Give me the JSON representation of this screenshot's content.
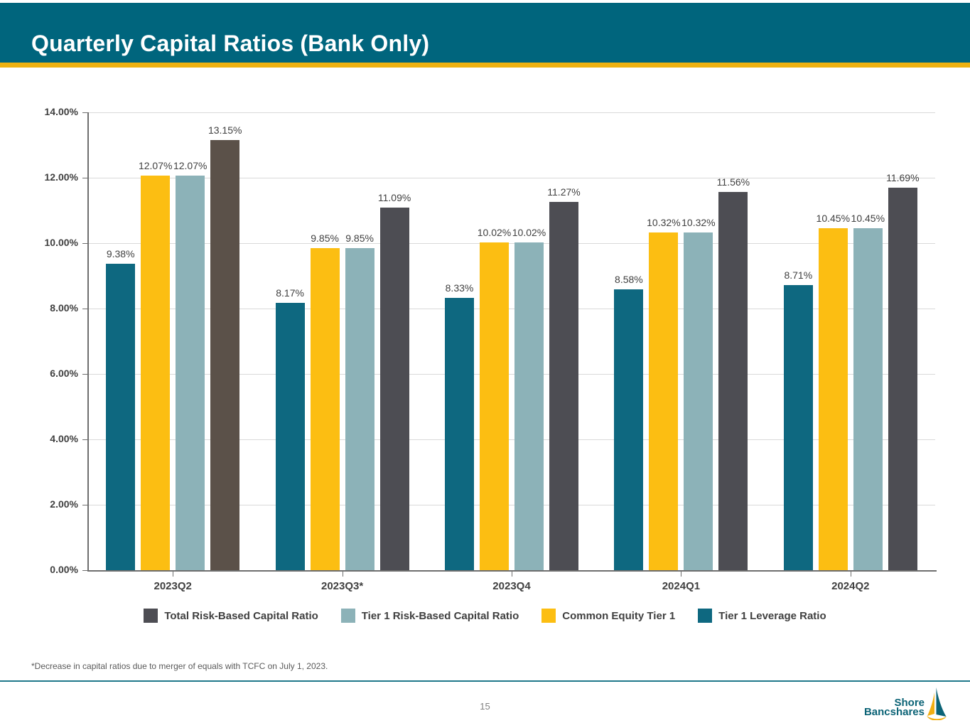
{
  "header": {
    "title": "Quarterly Capital Ratios (Bank Only)"
  },
  "chart_data": {
    "type": "bar",
    "title": "Quarterly Capital Ratios (Bank Only)",
    "categories": [
      "2023Q2",
      "2023Q3*",
      "2023Q4",
      "2024Q1",
      "2024Q2"
    ],
    "series": [
      {
        "name": "Tier 1 Leverage Ratio",
        "color": "#0E6880",
        "values": [
          9.38,
          8.17,
          8.33,
          8.58,
          8.71
        ]
      },
      {
        "name": "Common Equity Tier 1",
        "color": "#FCBE12",
        "values": [
          12.07,
          9.85,
          10.02,
          10.32,
          10.45
        ]
      },
      {
        "name": "Tier 1 Risk-Based Capital Ratio",
        "color": "#8CB2B8",
        "values": [
          12.07,
          9.85,
          10.02,
          10.32,
          10.45
        ]
      },
      {
        "name": "Total Risk-Based Capital Ratio",
        "color": "#4D4D53",
        "color_overrides": {
          "0": "#5B5149"
        },
        "values": [
          13.15,
          11.09,
          11.27,
          11.56,
          11.69
        ]
      }
    ],
    "xlabel": "",
    "ylabel": "",
    "ylim": [
      0,
      14
    ],
    "ytick_step": 2,
    "ytick_labels": [
      "0.00%",
      "2.00%",
      "4.00%",
      "6.00%",
      "8.00%",
      "10.00%",
      "12.00%",
      "14.00%"
    ],
    "grid": true,
    "legend_position": "bottom",
    "value_labels": true,
    "value_label_format": "0.00%"
  },
  "legend": {
    "items": [
      {
        "label": "Total Risk-Based Capital Ratio",
        "color": "#4D4D53"
      },
      {
        "label": "Tier 1 Risk-Based Capital Ratio",
        "color": "#8CB2B8"
      },
      {
        "label": "Common Equity Tier 1",
        "color": "#FCBE12"
      },
      {
        "label": "Tier 1 Leverage Ratio",
        "color": "#0E6880"
      }
    ]
  },
  "footnote": "*Decrease in capital ratios due to merger of equals with TCFC on July 1, 2023.",
  "footer": {
    "page_number": "15",
    "logo_line1": "Shore",
    "logo_line2": "Bancshares"
  },
  "colors": {
    "header_teal": "#00657D",
    "accent_gold": "#EEB111",
    "divider_teal": "#20788A",
    "grid_gray": "#D9D9D9",
    "axis_gray": "#6E6E6E",
    "label_gray": "#404040",
    "logo_teal": "#0B6376"
  }
}
